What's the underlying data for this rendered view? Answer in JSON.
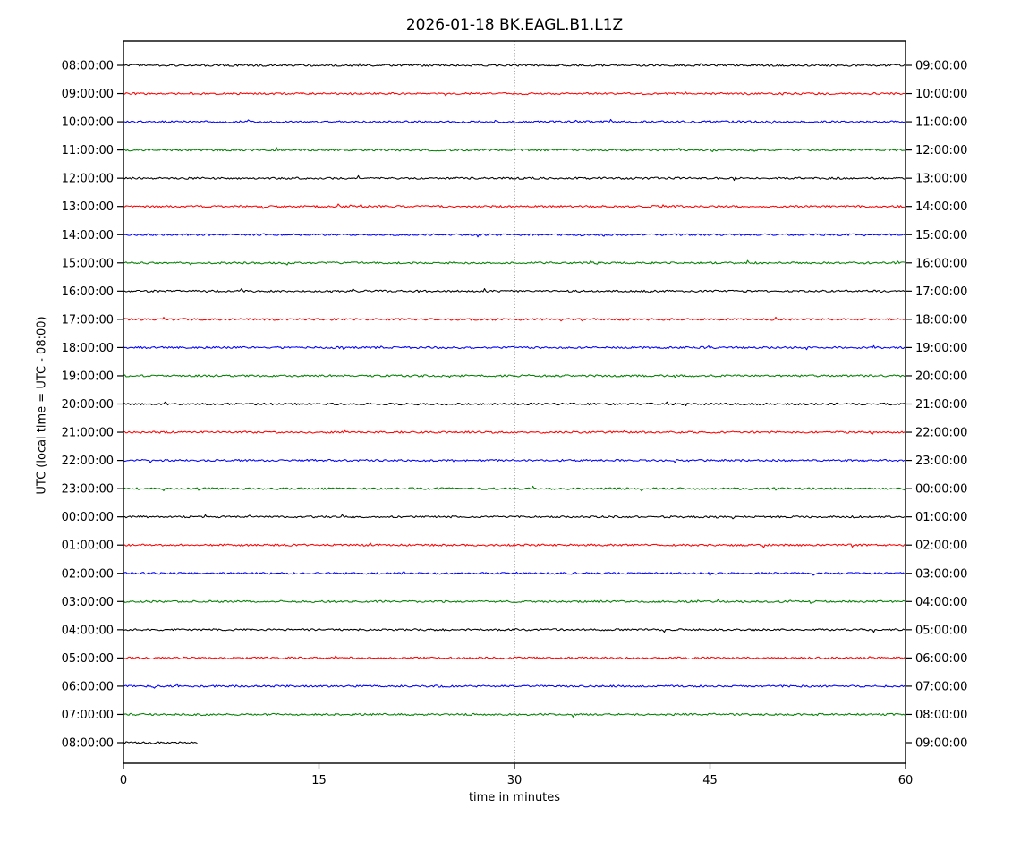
{
  "title": "2026-01-18 BK.EAGL.B1.L1Z",
  "chart_data": {
    "type": "line",
    "subtype": "helicorder-dayplot",
    "title": "2026-01-18 BK.EAGL.B1.L1Z",
    "xlabel": "time in minutes",
    "ylabel": "UTC (local time = UTC - 08:00)",
    "xlim": [
      0,
      60
    ],
    "x_ticks": [
      0,
      15,
      30,
      45,
      60
    ],
    "grid_x": [
      15,
      30,
      45
    ],
    "grid_style": "dotted",
    "legend": "none",
    "trace_color_cycle": [
      "#000000",
      "#ff0000",
      "#0000ff",
      "#008000"
    ],
    "trace_description": "quiet flat low-amplitude noise traces, one per hour, no visible seismic events",
    "rows": [
      {
        "left_label": "08:00:00",
        "right_label": "09:00:00",
        "color": "#000000",
        "duration_min": 60
      },
      {
        "left_label": "09:00:00",
        "right_label": "10:00:00",
        "color": "#ff0000",
        "duration_min": 60
      },
      {
        "left_label": "10:00:00",
        "right_label": "11:00:00",
        "color": "#0000ff",
        "duration_min": 60
      },
      {
        "left_label": "11:00:00",
        "right_label": "12:00:00",
        "color": "#008000",
        "duration_min": 60
      },
      {
        "left_label": "12:00:00",
        "right_label": "13:00:00",
        "color": "#000000",
        "duration_min": 60
      },
      {
        "left_label": "13:00:00",
        "right_label": "14:00:00",
        "color": "#ff0000",
        "duration_min": 60
      },
      {
        "left_label": "14:00:00",
        "right_label": "15:00:00",
        "color": "#0000ff",
        "duration_min": 60
      },
      {
        "left_label": "15:00:00",
        "right_label": "16:00:00",
        "color": "#008000",
        "duration_min": 60
      },
      {
        "left_label": "16:00:00",
        "right_label": "17:00:00",
        "color": "#000000",
        "duration_min": 60
      },
      {
        "left_label": "17:00:00",
        "right_label": "18:00:00",
        "color": "#ff0000",
        "duration_min": 60
      },
      {
        "left_label": "18:00:00",
        "right_label": "19:00:00",
        "color": "#0000ff",
        "duration_min": 60
      },
      {
        "left_label": "19:00:00",
        "right_label": "20:00:00",
        "color": "#008000",
        "duration_min": 60
      },
      {
        "left_label": "20:00:00",
        "right_label": "21:00:00",
        "color": "#000000",
        "duration_min": 60
      },
      {
        "left_label": "21:00:00",
        "right_label": "22:00:00",
        "color": "#ff0000",
        "duration_min": 60
      },
      {
        "left_label": "22:00:00",
        "right_label": "23:00:00",
        "color": "#0000ff",
        "duration_min": 60
      },
      {
        "left_label": "23:00:00",
        "right_label": "00:00:00",
        "color": "#008000",
        "duration_min": 60
      },
      {
        "left_label": "00:00:00",
        "right_label": "01:00:00",
        "color": "#000000",
        "duration_min": 60
      },
      {
        "left_label": "01:00:00",
        "right_label": "02:00:00",
        "color": "#ff0000",
        "duration_min": 60
      },
      {
        "left_label": "02:00:00",
        "right_label": "03:00:00",
        "color": "#0000ff",
        "duration_min": 60
      },
      {
        "left_label": "03:00:00",
        "right_label": "04:00:00",
        "color": "#008000",
        "duration_min": 60
      },
      {
        "left_label": "04:00:00",
        "right_label": "05:00:00",
        "color": "#000000",
        "duration_min": 60
      },
      {
        "left_label": "05:00:00",
        "right_label": "06:00:00",
        "color": "#ff0000",
        "duration_min": 60
      },
      {
        "left_label": "06:00:00",
        "right_label": "07:00:00",
        "color": "#0000ff",
        "duration_min": 60
      },
      {
        "left_label": "07:00:00",
        "right_label": "08:00:00",
        "color": "#008000",
        "duration_min": 60
      },
      {
        "left_label": "08:00:00",
        "right_label": "09:00:00",
        "color": "#000000",
        "duration_min": 5.75
      }
    ]
  }
}
